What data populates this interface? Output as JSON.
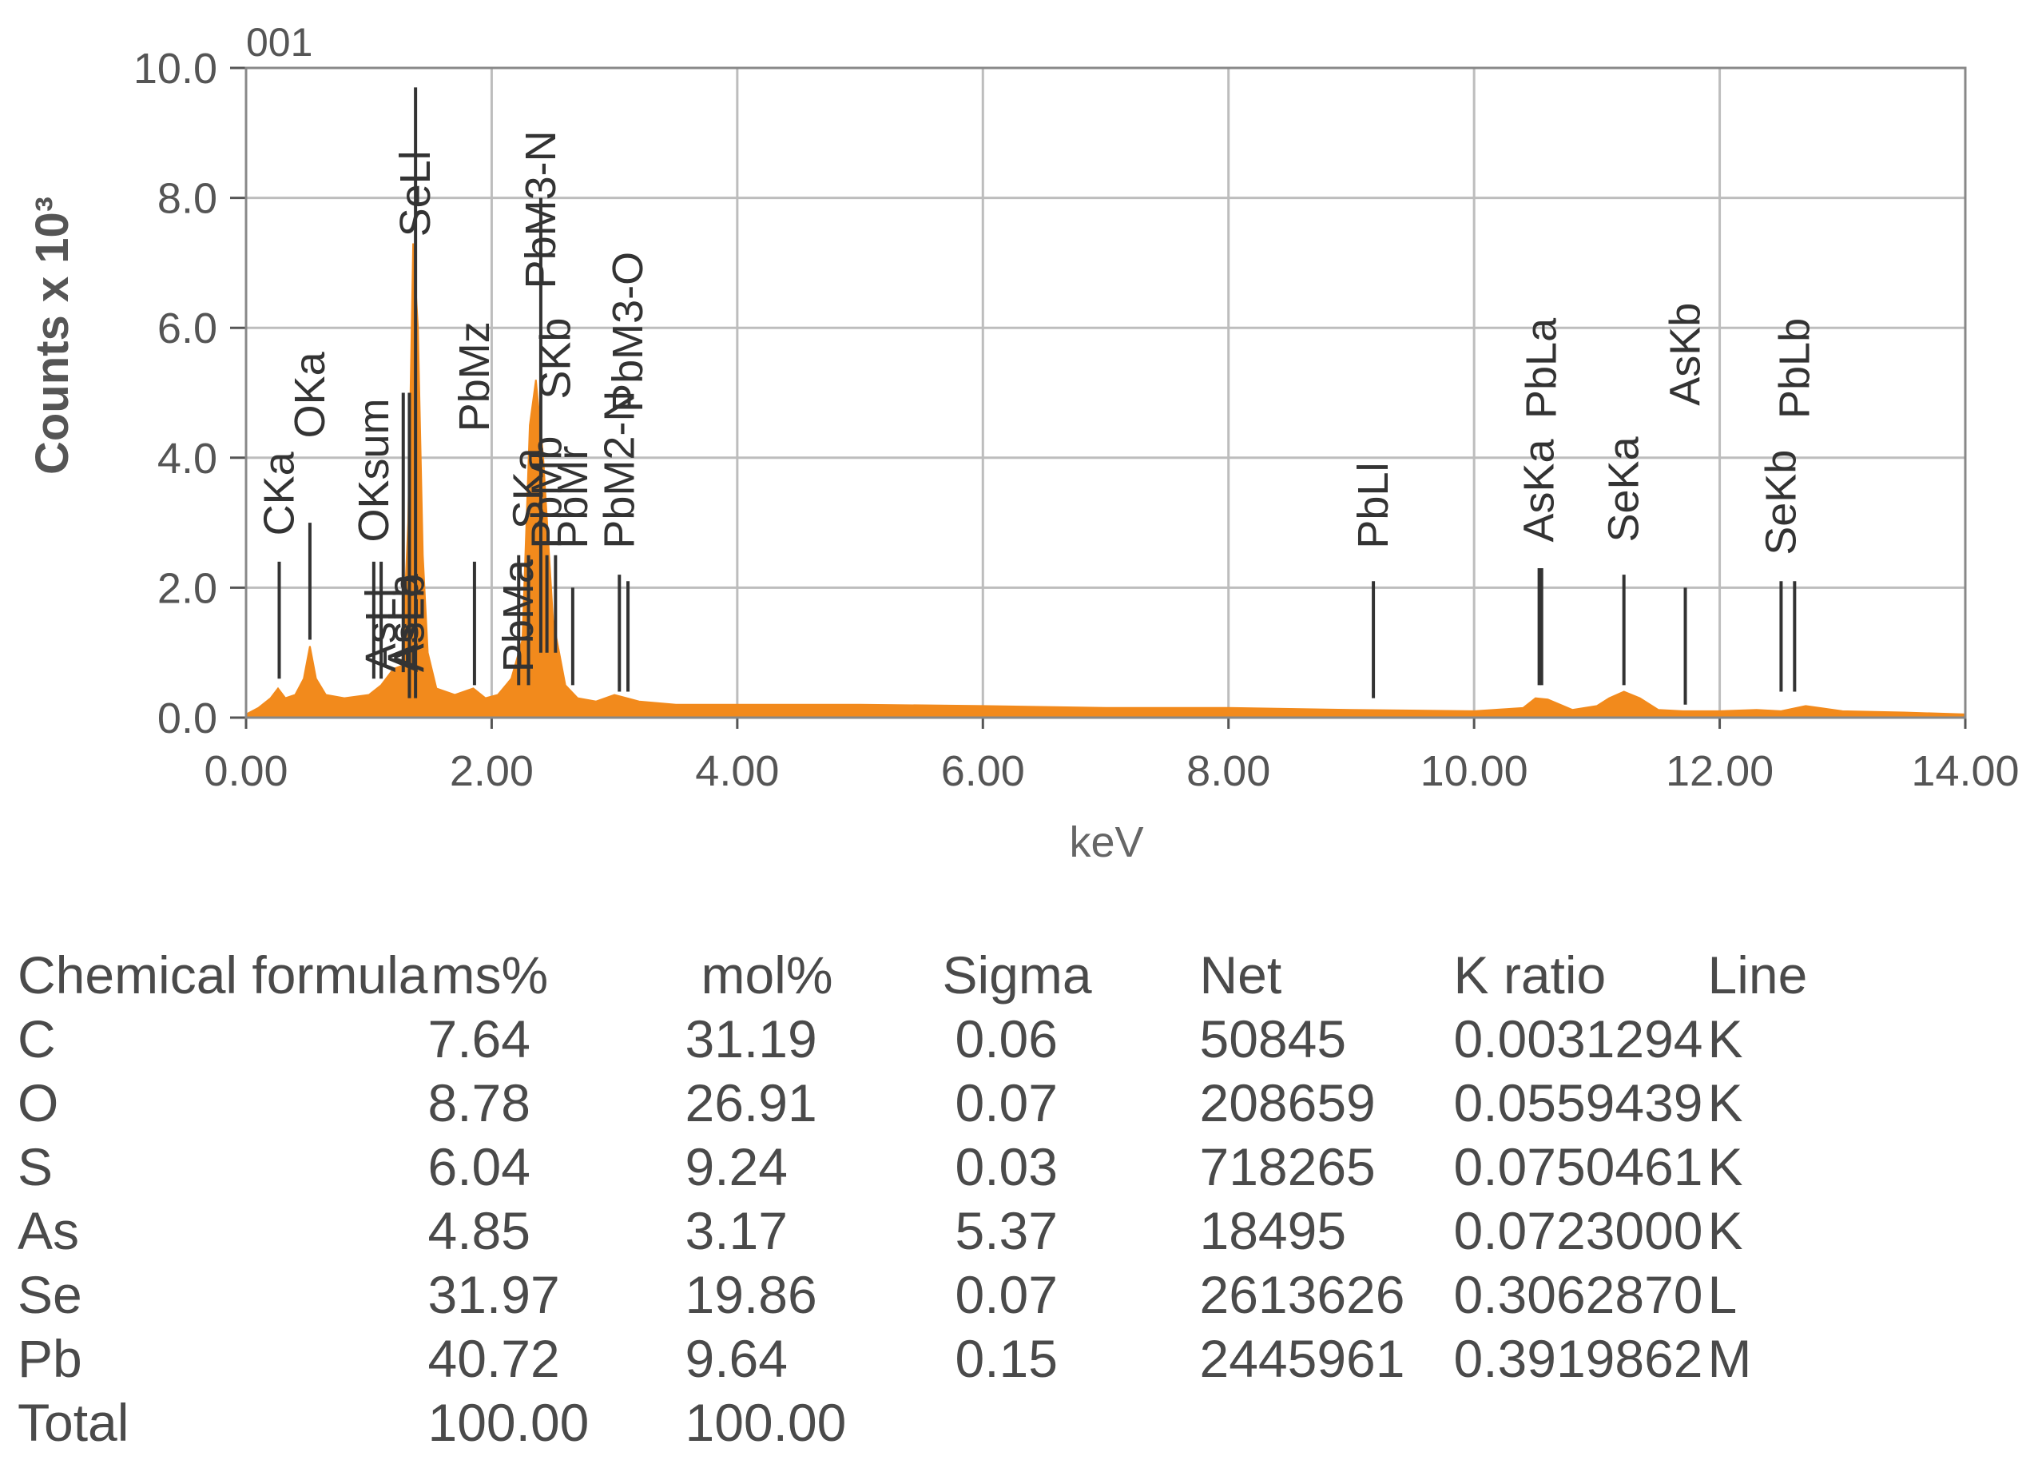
{
  "chart_data": {
    "type": "area",
    "title": "001",
    "xlabel": "keV",
    "ylabel": "Counts x 10³",
    "xlim": [
      0,
      14
    ],
    "ylim": [
      0,
      10
    ],
    "xticks": [
      "0.00",
      "2.00",
      "4.00",
      "6.00",
      "8.00",
      "10.00",
      "12.00",
      "14.00"
    ],
    "yticks": [
      "0.0",
      "2.0",
      "4.0",
      "6.0",
      "8.0",
      "10.0"
    ],
    "grid": true,
    "color": "#f28a1c",
    "spectrum": {
      "x": [
        0,
        0.1,
        0.2,
        0.26,
        0.32,
        0.4,
        0.47,
        0.52,
        0.57,
        0.65,
        0.8,
        1.0,
        1.1,
        1.2,
        1.27,
        1.32,
        1.36,
        1.4,
        1.44,
        1.48,
        1.55,
        1.7,
        1.85,
        1.95,
        2.05,
        2.16,
        2.25,
        2.31,
        2.36,
        2.42,
        2.5,
        2.6,
        2.7,
        2.85,
        3.0,
        3.1,
        3.2,
        3.5,
        4.0,
        5.0,
        6.0,
        7.0,
        8.0,
        9.0,
        10.0,
        10.4,
        10.5,
        10.6,
        10.8,
        11.0,
        11.1,
        11.22,
        11.35,
        11.5,
        11.7,
        12.0,
        12.3,
        12.5,
        12.7,
        13.0,
        13.5,
        14.0
      ],
      "y": [
        0.05,
        0.15,
        0.3,
        0.45,
        0.3,
        0.35,
        0.6,
        1.1,
        0.6,
        0.35,
        0.3,
        0.35,
        0.5,
        0.75,
        0.8,
        3.0,
        7.3,
        6.0,
        2.5,
        1.0,
        0.45,
        0.35,
        0.45,
        0.3,
        0.35,
        0.6,
        1.2,
        4.5,
        5.2,
        4.0,
        1.5,
        0.5,
        0.3,
        0.25,
        0.35,
        0.3,
        0.25,
        0.2,
        0.2,
        0.2,
        0.18,
        0.15,
        0.15,
        0.12,
        0.1,
        0.15,
        0.3,
        0.28,
        0.12,
        0.18,
        0.3,
        0.4,
        0.3,
        0.12,
        0.1,
        0.1,
        0.12,
        0.1,
        0.18,
        0.1,
        0.08,
        0.05
      ]
    },
    "peaks": [
      {
        "label": "CKa",
        "x": 0.27,
        "line_bottom": 0.6,
        "line_top": 2.4,
        "text_base": 2.8
      },
      {
        "label": "OKa",
        "x": 0.52,
        "line_bottom": 1.2,
        "line_top": 3.0,
        "text_base": 4.3
      },
      {
        "label": "OKsum",
        "x": 1.04,
        "line_bottom": 0.6,
        "line_top": 2.4,
        "text_base": 2.7
      },
      {
        "label": "AsLl",
        "x": 1.1,
        "line_bottom": 0.6,
        "line_top": 2.4,
        "text_base": 0.7
      },
      {
        "label": "AsLa",
        "x": 1.28,
        "line_bottom": 0.7,
        "line_top": 5.0,
        "text_base": 0.7
      },
      {
        "label": "AsLb",
        "x": 1.33,
        "line_bottom": 0.3,
        "line_top": 5.0,
        "text_base": 0.7
      },
      {
        "label": "SeLl",
        "x": 1.38,
        "line_bottom": 0.3,
        "line_top": 9.7,
        "text_base": 7.4
      },
      {
        "label": "PbMz",
        "x": 1.86,
        "line_bottom": 0.5,
        "line_top": 2.4,
        "text_base": 4.4
      },
      {
        "label": "PbMa",
        "x": 2.22,
        "line_bottom": 0.5,
        "line_top": 2.5,
        "text_base": 0.7
      },
      {
        "label": "SKa",
        "x": 2.3,
        "line_bottom": 0.5,
        "line_top": 2.5,
        "text_base": 2.9
      },
      {
        "label": "PbM3-N",
        "x": 2.4,
        "line_bottom": 1.0,
        "line_top": 8.0,
        "text_base": 6.6
      },
      {
        "label": "PbMb",
        "x": 2.45,
        "line_bottom": 1.0,
        "line_top": 2.5,
        "text_base": 2.6
      },
      {
        "label": "SKb",
        "x": 2.52,
        "line_bottom": 1.0,
        "line_top": 2.5,
        "text_base": 4.9
      },
      {
        "label": "PbMr",
        "x": 2.66,
        "line_bottom": 0.5,
        "line_top": 2.0,
        "text_base": 2.6
      },
      {
        "label": "PbM2-N",
        "x": 3.04,
        "line_bottom": 0.4,
        "line_top": 2.2,
        "text_base": 2.6
      },
      {
        "label": "PbM3-O",
        "x": 3.11,
        "line_bottom": 0.4,
        "line_top": 2.1,
        "text_base": 4.7
      },
      {
        "label": "PbLl",
        "x": 9.18,
        "line_bottom": 0.3,
        "line_top": 2.1,
        "text_base": 2.6
      },
      {
        "label": "AsKa",
        "x": 10.53,
        "line_bottom": 0.5,
        "line_top": 2.3,
        "text_base": 2.7
      },
      {
        "label": "PbLa",
        "x": 10.55,
        "line_bottom": 0.5,
        "line_top": 2.3,
        "text_base": 4.6
      },
      {
        "label": "SeKa",
        "x": 11.22,
        "line_bottom": 0.5,
        "line_top": 2.2,
        "text_base": 2.7
      },
      {
        "label": "AsKb",
        "x": 11.72,
        "line_bottom": 0.2,
        "line_top": 2.0,
        "text_base": 4.8
      },
      {
        "label": "SeKb",
        "x": 12.5,
        "line_bottom": 0.4,
        "line_top": 2.1,
        "text_base": 2.5
      },
      {
        "label": "PbLb",
        "x": 12.61,
        "line_bottom": 0.4,
        "line_top": 2.1,
        "text_base": 4.6
      }
    ]
  },
  "table": {
    "headers": [
      "Chemical formula",
      "ms%",
      "mol%",
      "Sigma",
      "Net",
      "K ratio",
      "Line"
    ],
    "rows": [
      [
        "C",
        "7.64",
        "31.19",
        "0.06",
        "50845",
        "0.0031294",
        "K"
      ],
      [
        "O",
        "8.78",
        "26.91",
        "0.07",
        "208659",
        "0.0559439",
        "K"
      ],
      [
        "S",
        "6.04",
        "9.24",
        "0.03",
        "718265",
        "0.0750461",
        "K"
      ],
      [
        "As",
        "4.85",
        "3.17",
        "5.37",
        "18495",
        "0.0723000",
        "K"
      ],
      [
        "Se",
        "31.97",
        "19.86",
        "0.07",
        "2613626",
        "0.3062870",
        "L"
      ],
      [
        "Pb",
        "40.72",
        "9.64",
        "0.15",
        "2445961",
        "0.3919862",
        "M"
      ],
      [
        "Total",
        "100.00",
        "100.00",
        "",
        "",
        "",
        ""
      ]
    ]
  }
}
